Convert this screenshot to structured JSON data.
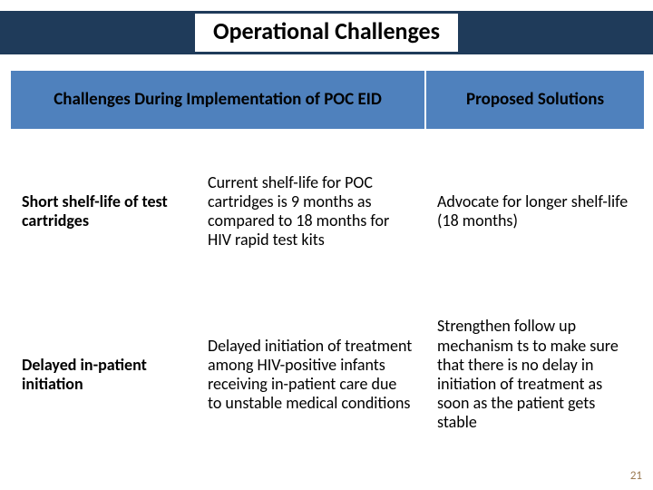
{
  "slide": {
    "title": "Operational Challenges",
    "page_number": "21",
    "header_bar_color": "#1f3b5a",
    "table_header_color": "#4f81bd",
    "table_border_color": "#ffffff",
    "title_fontsize": 26,
    "header_fontsize": 19,
    "body_fontsize": 18
  },
  "table": {
    "columns": [
      {
        "label": "Challenges During Implementation of POC EID",
        "span": 2
      },
      {
        "label": "Proposed Solutions",
        "span": 1
      }
    ],
    "rows": [
      {
        "label": "Short shelf-life of test cartridges",
        "detail": "Current shelf-life for POC cartridges is 9 months  as compared to 18 months for HIV rapid test kits",
        "solution": "Advocate for longer shelf-life (18 months)"
      },
      {
        "label": "Delayed in-patient initiation",
        "detail": "Delayed initiation of treatment among HIV-positive infants receiving in-patient care due to unstable medical conditions",
        "solution": "Strengthen follow up mechanism ts to make sure that there is no delay in initiation of treatment as soon as the patient gets stable"
      }
    ]
  }
}
